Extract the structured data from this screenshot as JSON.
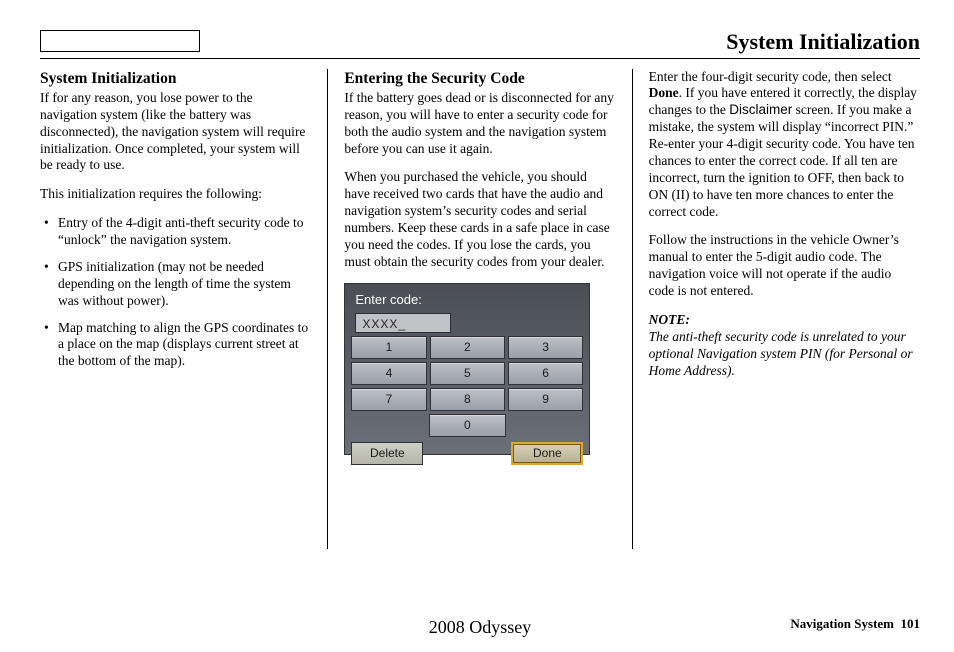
{
  "header": {
    "title": "System Initialization"
  },
  "col1": {
    "heading": "System Initialization",
    "p1": "If for any reason, you lose power to the navigation system (like the battery was disconnected), the navigation system will require initialization. Once completed, your system will be ready to use.",
    "p2": "This initialization requires the following:",
    "bullets": [
      "Entry of the 4-digit anti-theft security code to “unlock” the navigation system.",
      "GPS initialization (may not be needed depending on the length of time the system was without power).",
      "Map matching to align the GPS coordinates to a place on the map (displays current street at the bottom of the map)."
    ]
  },
  "col2": {
    "heading": "Entering the Security Code",
    "p1": "If the battery goes dead or is disconnected for any reason, you will have to enter a security code for both the audio system and the navigation system before you can use it again.",
    "p2": "When you purchased the vehicle, you should have received two cards that have the audio and navigation system’s security codes and serial numbers. Keep these cards in a safe place in case you need the codes. If you lose the cards, you must obtain the security codes from your dealer."
  },
  "keypad": {
    "label": "Enter code:",
    "display": "XXXX_",
    "keys": {
      "1": "1",
      "2": "2",
      "3": "3",
      "4": "4",
      "5": "5",
      "6": "6",
      "7": "7",
      "8": "8",
      "9": "9",
      "0": "0"
    },
    "delete": "Delete",
    "done": "Done"
  },
  "col3": {
    "p1a": "Enter the four-digit security code, then select ",
    "p1b": "Done",
    "p1c": ". If you have entered it correctly, the display changes to the ",
    "p1d": "Disclaimer",
    "p1e": " screen. If you make a mistake, the system will display “incorrect PIN.” Re-enter your 4-digit security code. You have ten chances to enter the correct code. If all ten are incorrect, turn the ignition to OFF, then back to ON (II) to have ten more chances to enter the correct code.",
    "p2": "Follow the instructions in the vehicle Owner’s manual to enter the 5-digit audio code. The navigation voice will not operate if the audio code is not entered.",
    "note_label": "NOTE:",
    "note_text": "The anti-theft security code is unrelated to your optional Navigation system PIN (for Personal or Home Address)."
  },
  "footer": {
    "model": "2008  Odyssey",
    "section": "Navigation System",
    "page": "101"
  }
}
